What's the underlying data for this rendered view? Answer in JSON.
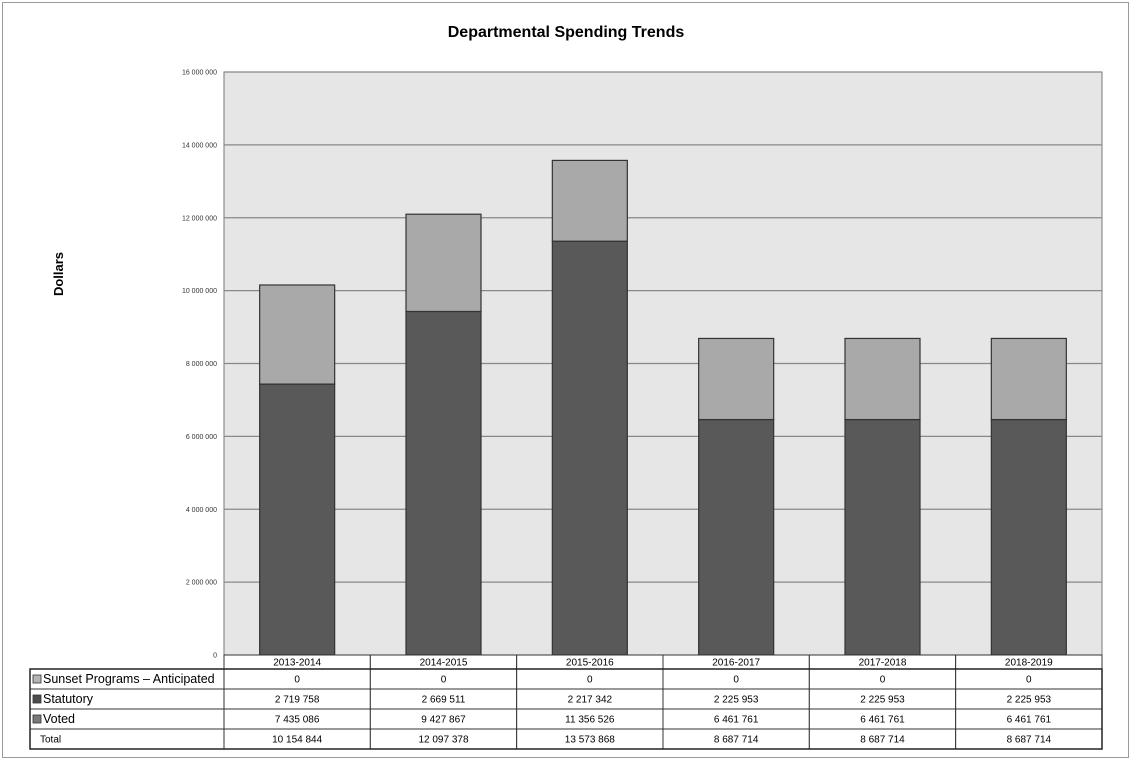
{
  "chart_data": {
    "type": "bar",
    "stacked": true,
    "title": "Departmental Spending Trends",
    "xlabel": "",
    "ylabel": "Dollars",
    "ylim": [
      0,
      16000000
    ],
    "yticks": [
      "0",
      "2 000 000",
      "4 000 000",
      "6 000 000",
      "8 000 000",
      "10 000 000",
      "12 000 000",
      "14 000 000",
      "16 000 000"
    ],
    "ytick_values": [
      0,
      2000000,
      4000000,
      6000000,
      8000000,
      10000000,
      12000000,
      14000000,
      16000000
    ],
    "grid": true,
    "legend": "data table below plot",
    "categories": [
      "2013-2014",
      "2014-2015",
      "2015-2016",
      "2016-2017",
      "2017-2018",
      "2018-2019"
    ],
    "series": [
      {
        "name": "Sunset Programs – Anticipated",
        "color": "#b4b4b4",
        "values": [
          0,
          0,
          0,
          0,
          0,
          0
        ],
        "labels": [
          "0",
          "0",
          "0",
          "0",
          "0",
          "0"
        ]
      },
      {
        "name": "Statutory",
        "color": "#a9a9a9",
        "values": [
          2719758,
          2669511,
          2217342,
          2225953,
          2225953,
          2225953
        ],
        "labels": [
          "2 719 758",
          "2 669 511",
          "2 217 342",
          "2 225 953",
          "2 225 953",
          "2 225 953"
        ]
      },
      {
        "name": "Voted",
        "color": "#595959",
        "values": [
          7435086,
          9427867,
          11356526,
          6461761,
          6461761,
          6461761
        ],
        "labels": [
          "7 435 086",
          "9 427 867",
          "11 356 526",
          "6 461 761",
          "6 461 761",
          "6 461 761"
        ]
      }
    ],
    "totals": {
      "name": "Total",
      "labels": [
        "10 154 844",
        "12 097 378",
        "13 573 868",
        "8 687 714",
        "8 687 714",
        "8 687 714"
      ]
    },
    "colors": {
      "plot_background": "#e6e6e6",
      "gridline": "#888888",
      "swatch_sunset": "#b4b4b4",
      "swatch_statutory": "#4d4d4d",
      "swatch_voted": "#7a7a7a"
    }
  }
}
